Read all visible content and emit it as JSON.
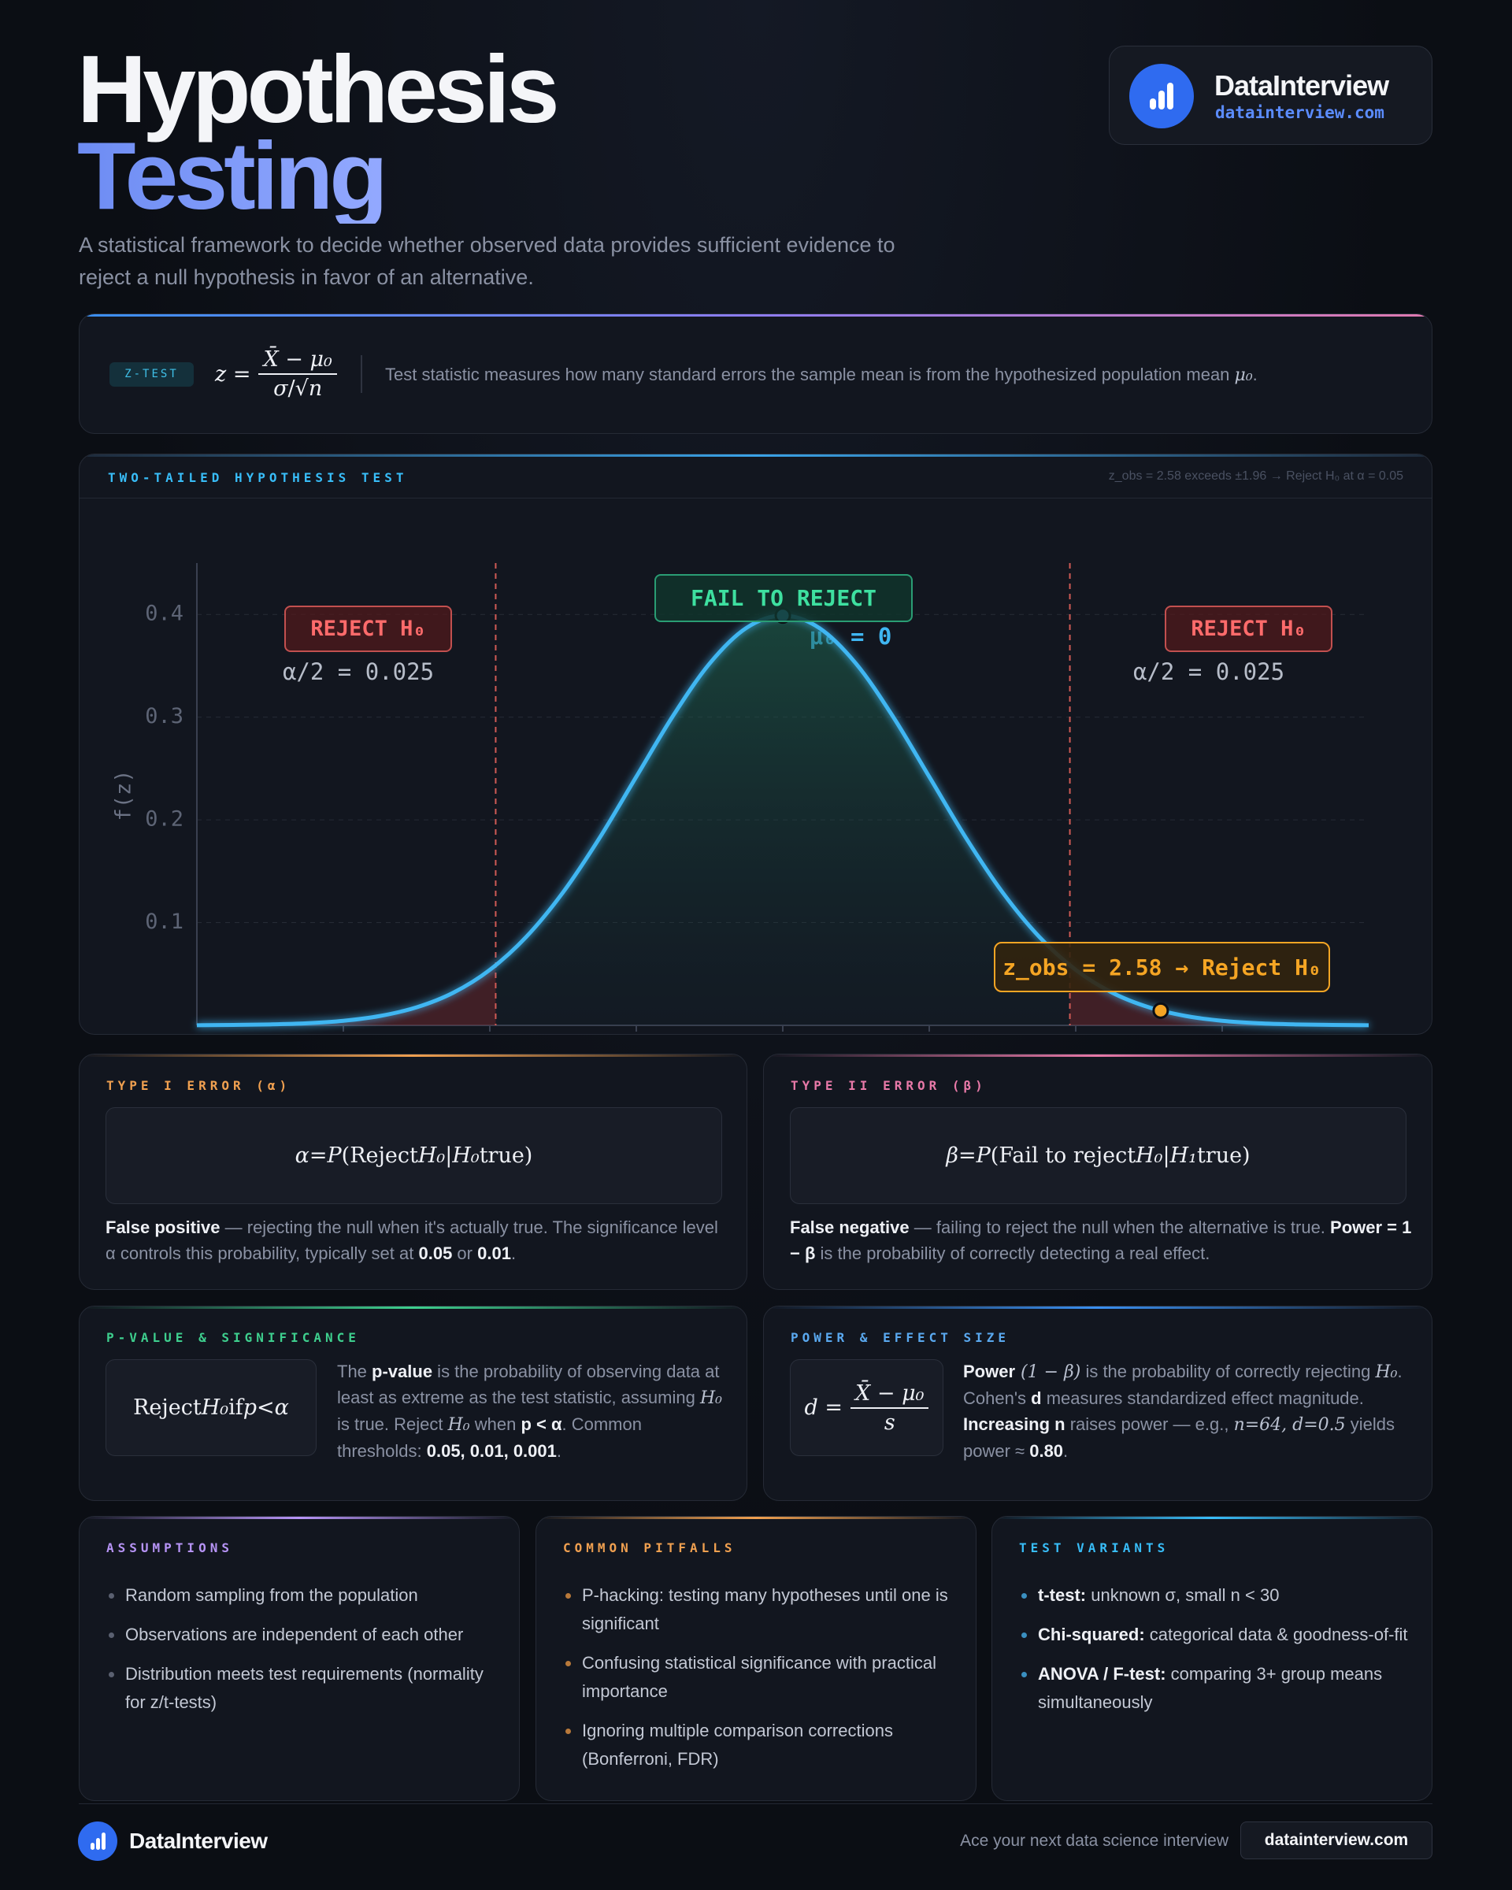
{
  "header": {
    "title_line1": "Hypothesis",
    "title_line2": "Testing",
    "subtitle": "A statistical framework to decide whether observed data provides sufficient evidence to reject a null hypothesis in favor of an alternative."
  },
  "brand": {
    "name": "DataInterview",
    "url": "datainterview.com"
  },
  "formula_card": {
    "badge": "Z-TEST",
    "lhs": [
      {
        "t": "z",
        "s": "i"
      },
      {
        "t": " ="
      }
    ],
    "num": [
      {
        "t": "X̄",
        "s": "i"
      },
      {
        "t": " − "
      },
      {
        "t": "μ₀",
        "s": "i"
      }
    ],
    "den": [
      {
        "t": "σ",
        "s": "i"
      },
      {
        "t": "/√"
      },
      {
        "t": "n",
        "s": "i"
      }
    ],
    "text": [
      {
        "t": "Test statistic measures how many standard errors the sample mean is from the hypothesized population mean "
      },
      {
        "t": "μ₀",
        "s": "m"
      },
      {
        "t": "."
      }
    ]
  },
  "chart_data": {
    "type": "line",
    "title": "TWO-TAILED HYPOTHESIS TEST",
    "note": "z_obs = 2.58 exceeds ±1.96 → Reject H₀ at α = 0.05",
    "ylabel": "f(z)",
    "x": [
      -4,
      -3.75,
      -3.5,
      -3.25,
      -3,
      -2.75,
      -2.5,
      -2.25,
      -2,
      -1.75,
      -1.5,
      -1.25,
      -1,
      -0.75,
      -0.5,
      -0.25,
      0,
      0.25,
      0.5,
      0.75,
      1,
      1.25,
      1.5,
      1.75,
      2,
      2.25,
      2.5,
      2.75,
      3,
      3.25,
      3.5,
      3.75,
      4
    ],
    "values": [
      0.0001,
      0.0004,
      0.0009,
      0.002,
      0.0044,
      0.0091,
      0.0175,
      0.0317,
      0.054,
      0.0863,
      0.1295,
      0.1826,
      0.242,
      0.3011,
      0.3521,
      0.3867,
      0.3989,
      0.3867,
      0.3521,
      0.3011,
      0.242,
      0.1826,
      0.1295,
      0.0863,
      0.054,
      0.0317,
      0.0175,
      0.0091,
      0.0044,
      0.002,
      0.0009,
      0.0004,
      0.0001
    ],
    "color": "#3fb6f2",
    "xlim": [
      -4,
      4
    ],
    "xticks": [
      -3,
      -2,
      -1,
      0,
      1,
      2,
      3
    ],
    "ylim": [
      0,
      0.45
    ],
    "yticks": [
      0.1,
      0.2,
      0.3,
      0.4
    ],
    "grid": true,
    "critical_values": [
      -1.96,
      1.96
    ],
    "markers": [
      {
        "x": 0,
        "y": 0.3989,
        "color": "#3fb6f2"
      },
      {
        "x": 2.58,
        "y": 0.0143,
        "color": "#f5a524"
      }
    ],
    "annotations": {
      "reject_left": "REJECT H₀",
      "alpha_left": "α/2 = 0.025",
      "fail": "FAIL TO REJECT",
      "mu": "μ₀ = 0",
      "reject_right": "REJECT H₀",
      "alpha_right": "α/2 = 0.025",
      "z_obs": "z_obs = 2.58 → Reject H₀"
    }
  },
  "type_one": {
    "title": "TYPE I ERROR (α)",
    "formula": [
      {
        "t": "α",
        "s": "i"
      },
      {
        "t": " = "
      },
      {
        "t": "P",
        "s": "i"
      },
      {
        "t": "(Reject "
      },
      {
        "t": "H₀",
        "s": "i"
      },
      {
        "t": " | "
      },
      {
        "t": "H₀",
        "s": "i"
      },
      {
        "t": " true)"
      }
    ],
    "text": [
      {
        "t": "False positive",
        "s": "b"
      },
      {
        "t": " — rejecting the null when it's actually true. The significance level α controls this probability, typically set at "
      },
      {
        "t": "0.05",
        "s": "b"
      },
      {
        "t": " or "
      },
      {
        "t": "0.01",
        "s": "b"
      },
      {
        "t": "."
      }
    ]
  },
  "type_two": {
    "title": "TYPE II ERROR (β)",
    "formula": [
      {
        "t": "β",
        "s": "i"
      },
      {
        "t": " = "
      },
      {
        "t": "P",
        "s": "i"
      },
      {
        "t": "(Fail to reject "
      },
      {
        "t": "H₀",
        "s": "i"
      },
      {
        "t": " | "
      },
      {
        "t": "H₁",
        "s": "i"
      },
      {
        "t": " true)"
      }
    ],
    "text": [
      {
        "t": "False negative",
        "s": "b"
      },
      {
        "t": " — failing to reject the null when the alternative is true. "
      },
      {
        "t": "Power = 1 − β",
        "s": "b"
      },
      {
        "t": " is the probability of correctly detecting a real effect."
      }
    ]
  },
  "p_value": {
    "title": "P-VALUE & SIGNIFICANCE",
    "formula": [
      {
        "t": "Reject "
      },
      {
        "t": "H₀",
        "s": "i"
      },
      {
        "t": " if "
      },
      {
        "t": "p",
        "s": "i"
      },
      {
        "t": " < "
      },
      {
        "t": "α",
        "s": "i"
      }
    ],
    "text": [
      {
        "t": "The "
      },
      {
        "t": "p-value",
        "s": "b"
      },
      {
        "t": " is the probability of observing data at least as extreme as the test statistic, assuming "
      },
      {
        "t": "H₀",
        "s": "m"
      },
      {
        "t": " is true. Reject "
      },
      {
        "t": "H₀",
        "s": "m"
      },
      {
        "t": " when "
      },
      {
        "t": "p < α",
        "s": "b"
      },
      {
        "t": ". Common thresholds: "
      },
      {
        "t": "0.05, 0.01, 0.001",
        "s": "b"
      },
      {
        "t": "."
      }
    ]
  },
  "power": {
    "title": "POWER & EFFECT SIZE",
    "lhs": [
      {
        "t": "d",
        "s": "i"
      },
      {
        "t": " ="
      }
    ],
    "num": [
      {
        "t": "X̄",
        "s": "i"
      },
      {
        "t": " − "
      },
      {
        "t": "μ₀",
        "s": "i"
      }
    ],
    "den": [
      {
        "t": "s",
        "s": "i"
      }
    ],
    "text": [
      {
        "t": "Power",
        "s": "b"
      },
      {
        "t": " (1 − β)",
        "s": "m"
      },
      {
        "t": " is the probability of correctly rejecting "
      },
      {
        "t": "H₀",
        "s": "m"
      },
      {
        "t": ". Cohen's "
      },
      {
        "t": "d",
        "s": "b"
      },
      {
        "t": " measures standardized effect magnitude. "
      },
      {
        "t": "Increasing n",
        "s": "b"
      },
      {
        "t": " raises power — e.g., "
      },
      {
        "t": "n=64, d=0.5",
        "s": "m"
      },
      {
        "t": " yields power ≈ "
      },
      {
        "t": "0.80",
        "s": "b"
      },
      {
        "t": "."
      }
    ]
  },
  "assumptions": {
    "title": "ASSUMPTIONS",
    "items": [
      [
        {
          "t": "Random sampling from the population"
        }
      ],
      [
        {
          "t": "Observations are independent of each other"
        }
      ],
      [
        {
          "t": "Distribution meets test requirements (normality for z/t-tests)"
        }
      ]
    ]
  },
  "pitfalls": {
    "title": "COMMON PITFALLS",
    "items": [
      [
        {
          "t": "P-hacking: testing many hypotheses until one is significant"
        }
      ],
      [
        {
          "t": "Confusing statistical significance with practical importance"
        }
      ],
      [
        {
          "t": "Ignoring multiple comparison corrections (Bonferroni, FDR)"
        }
      ]
    ]
  },
  "variants": {
    "title": "TEST VARIANTS",
    "items": [
      [
        {
          "t": "t-test:",
          "s": "b"
        },
        {
          "t": " unknown σ, small n < 30"
        }
      ],
      [
        {
          "t": "Chi-squared:",
          "s": "b"
        },
        {
          "t": " categorical data & goodness-of-fit"
        }
      ],
      [
        {
          "t": "ANOVA / F-test:",
          "s": "b"
        },
        {
          "t": " comparing 3+ group means simultaneously"
        }
      ]
    ]
  },
  "footer": {
    "brand": "DataInterview",
    "tagline": "Ace your next data science interview",
    "link": "datainterview.com"
  }
}
